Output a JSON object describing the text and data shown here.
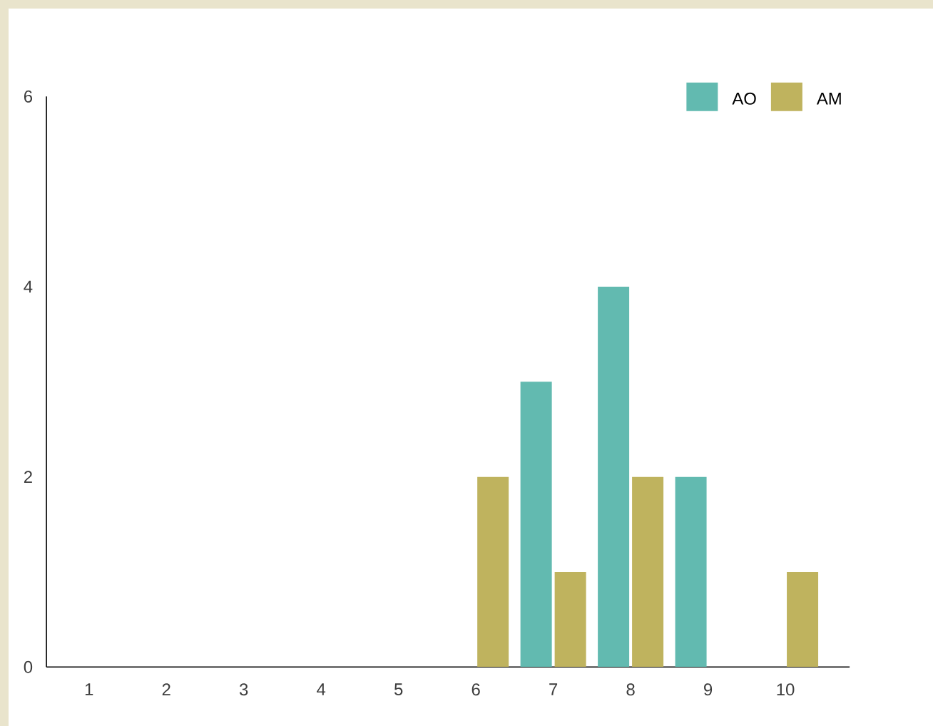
{
  "chart_data": {
    "type": "bar",
    "categories": [
      "1",
      "2",
      "3",
      "4",
      "5",
      "6",
      "7",
      "8",
      "9",
      "10"
    ],
    "series": [
      {
        "name": "AO",
        "color": "#62bab0",
        "values": [
          null,
          null,
          null,
          null,
          null,
          null,
          3,
          4,
          2,
          null
        ]
      },
      {
        "name": "AM",
        "color": "#bfb35e",
        "values": [
          null,
          null,
          null,
          null,
          null,
          2,
          1,
          2,
          null,
          1
        ]
      }
    ],
    "ylim": [
      0,
      6
    ],
    "yticks": [
      0,
      2,
      4,
      6
    ],
    "legend": "top right",
    "grid": false
  }
}
